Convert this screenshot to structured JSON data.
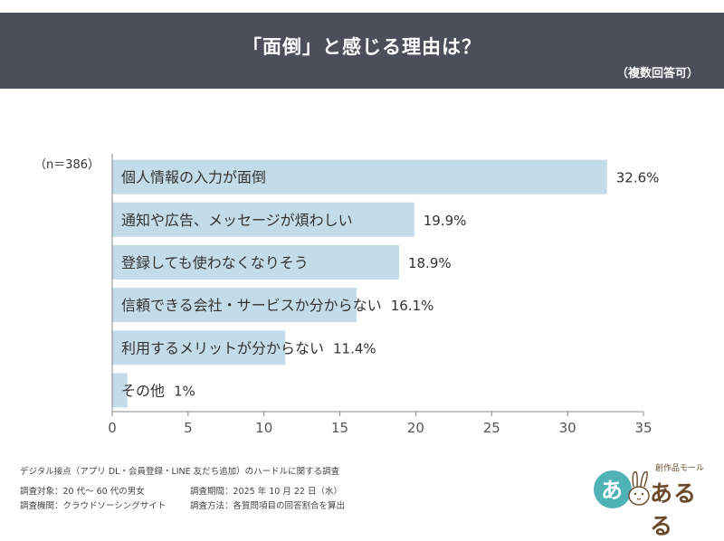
{
  "header": {
    "title": "「面倒」と感じる理由は？",
    "note": "（複数回答可）"
  },
  "chart_data": {
    "type": "bar",
    "orientation": "horizontal",
    "sample_size": "（n＝386）",
    "categories": [
      "個人情報の入力が面倒",
      "通知や広告、メッセージが煩わしい",
      "登録しても使わなくなりそう",
      "信頼できる会社・サービスか分からない",
      "利用するメリットが分からない",
      "その他"
    ],
    "values": [
      32.6,
      19.9,
      18.9,
      16.1,
      11.4,
      1
    ],
    "value_labels": [
      "32.6%",
      "19.9%",
      "18.9%",
      "16.1%",
      "11.4%",
      "1%"
    ],
    "xlim": [
      0,
      35
    ],
    "ticks": [
      0,
      5,
      10,
      15,
      20,
      25,
      30,
      35
    ],
    "tick_labels": [
      "0",
      "5",
      "10",
      "15",
      "20",
      "25",
      "30",
      "35"
    ],
    "bar_color": "#c4dce9",
    "axis_color": "#888888"
  },
  "footer": {
    "survey_name": "デジタル接点（アプリ DL・会員登録・LINE 友だち追加）のハードルに関する調査",
    "target": "調査対象：20 代～ 60 代の男女",
    "period": "調査期間：2025 年 10 月 22 日（水）",
    "agency": "調査機関：クラウドソーシングサイト",
    "method": "調査方法：各質問項目の回答割合を算出"
  },
  "logo": {
    "mark": "あ",
    "main": "あるる",
    "sub": "創作品モール"
  }
}
